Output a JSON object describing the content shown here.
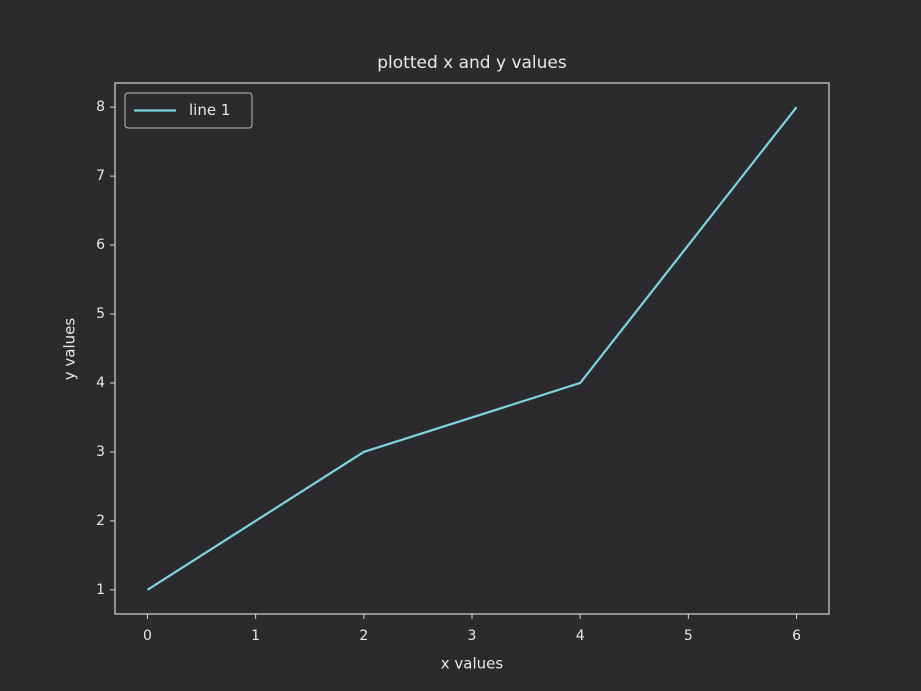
{
  "chart_data": {
    "type": "line",
    "title": "plotted x and y values",
    "x_label": "x values",
    "y_label": "y values",
    "x": [
      0,
      2,
      4,
      6
    ],
    "series": [
      {
        "name": "line 1",
        "color": "#7ed3de",
        "values": [
          1,
          3,
          4,
          8
        ]
      }
    ],
    "xlim": [
      -0.3,
      6.3
    ],
    "xticks": [
      0,
      1,
      2,
      3,
      4,
      5,
      6
    ],
    "ylim": [
      0.65,
      8.35
    ],
    "yticks": [
      1,
      2,
      3,
      4,
      5,
      6,
      7,
      8
    ],
    "grid": false,
    "legend": "upper left"
  }
}
